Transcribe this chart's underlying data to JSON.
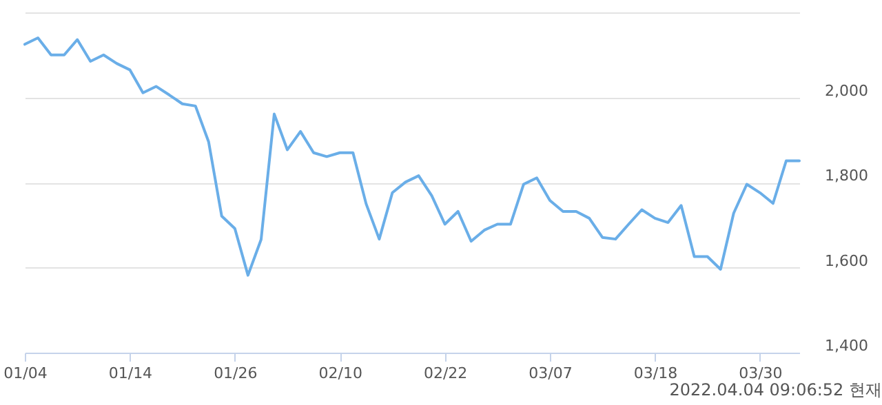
{
  "chart_data": {
    "type": "line",
    "categories": [
      "01/04",
      null,
      null,
      null,
      null,
      null,
      null,
      null,
      "01/14",
      null,
      null,
      null,
      null,
      null,
      null,
      null,
      "01/26",
      null,
      null,
      null,
      null,
      null,
      null,
      null,
      "02/10",
      null,
      null,
      null,
      null,
      null,
      null,
      null,
      "02/22",
      null,
      null,
      null,
      null,
      null,
      null,
      null,
      "03/07",
      null,
      null,
      null,
      null,
      null,
      null,
      null,
      "03/18",
      null,
      null,
      null,
      null,
      null,
      null,
      null,
      "03/30",
      null,
      null,
      null
    ],
    "series": [
      {
        "color": "#6aaee8",
        "values": [
          2125,
          2140,
          2100,
          2100,
          2136,
          2085,
          2100,
          2080,
          2065,
          2011,
          2026,
          2006,
          1985,
          1980,
          1896,
          1721,
          1692,
          1582,
          1666,
          1961,
          1877,
          1920,
          1870,
          1861,
          1870,
          1870,
          1750,
          1667,
          1776,
          1801,
          1816,
          1769,
          1702,
          1732,
          1662,
          1688,
          1702,
          1702,
          1796,
          1811,
          1758,
          1732,
          1732,
          1716,
          1671,
          1667,
          1702,
          1736,
          1716,
          1706,
          1746,
          1626,
          1626,
          1596,
          1728,
          1796,
          1776,
          1751,
          1851,
          1851
        ]
      }
    ],
    "ylim": [
      1400,
      2200
    ],
    "yticks": [
      {
        "value": 1400,
        "label": "1,400"
      },
      {
        "value": 1600,
        "label": "1,600"
      },
      {
        "value": 1800,
        "label": "1,800"
      },
      {
        "value": 2000,
        "label": "2,000"
      },
      {
        "value": 2200,
        "label": null
      }
    ],
    "grid": "y",
    "marker": "none",
    "line_style": "solid",
    "annotations": [
      "2022.04.04 09:06:52 현재"
    ]
  }
}
